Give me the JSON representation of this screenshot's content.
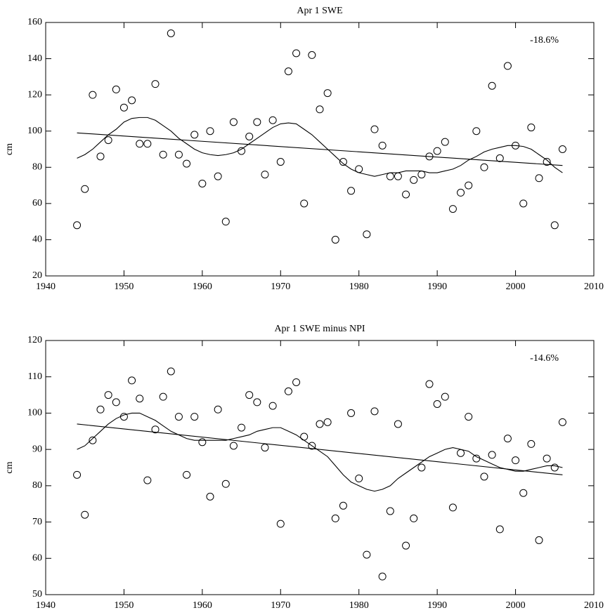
{
  "chart_data": [
    {
      "type": "scatter",
      "title": "Apr 1 SWE",
      "y_label": "cm",
      "annotation": "-18.6%",
      "color": "#000000",
      "xlim": [
        1940,
        2010
      ],
      "xticks": [
        1940,
        1950,
        1960,
        1970,
        1980,
        1990,
        2000,
        2010
      ],
      "ylim": [
        20,
        160
      ],
      "yticks": [
        20,
        40,
        60,
        80,
        100,
        120,
        140,
        160
      ],
      "x": [
        1944,
        1945,
        1946,
        1947,
        1948,
        1949,
        1950,
        1951,
        1952,
        1953,
        1954,
        1955,
        1956,
        1957,
        1958,
        1959,
        1960,
        1961,
        1962,
        1963,
        1964,
        1965,
        1966,
        1967,
        1968,
        1969,
        1970,
        1971,
        1972,
        1973,
        1974,
        1975,
        1976,
        1977,
        1978,
        1979,
        1980,
        1981,
        1982,
        1983,
        1984,
        1985,
        1986,
        1987,
        1988,
        1989,
        1990,
        1991,
        1992,
        1993,
        1994,
        1995,
        1996,
        1997,
        1998,
        1999,
        2000,
        2001,
        2002,
        2003,
        2004,
        2005,
        2006
      ],
      "values": [
        48,
        68,
        120,
        86,
        95,
        123,
        113,
        117,
        93,
        93,
        126,
        87,
        154,
        87,
        82,
        98,
        71,
        100,
        75,
        50,
        105,
        89,
        97,
        105,
        76,
        106,
        83,
        133,
        143,
        60,
        142,
        112,
        121,
        40,
        83,
        67,
        79,
        43,
        101,
        92,
        75,
        75,
        65,
        73,
        76,
        86,
        89,
        94,
        57,
        66,
        70,
        100,
        80,
        125,
        85,
        136,
        92,
        60,
        102,
        74,
        83,
        48,
        90
      ],
      "smooth": [
        85,
        87,
        90,
        94,
        98,
        101,
        105,
        107,
        107.5,
        107.5,
        106,
        103,
        100,
        96,
        93,
        90,
        88,
        87,
        86.5,
        87,
        88,
        90,
        93,
        96,
        99,
        102,
        104,
        104.5,
        104,
        101,
        98,
        94,
        90,
        86,
        82,
        79,
        77,
        76,
        75,
        76,
        77,
        77,
        78,
        78,
        78,
        77,
        77,
        78,
        79,
        81,
        84,
        86,
        88.5,
        90,
        91,
        92,
        92,
        91.5,
        90,
        87,
        84,
        80,
        77
      ],
      "trend_x": [
        1944,
        2006
      ],
      "trend_values": [
        99,
        81
      ]
    },
    {
      "type": "scatter",
      "title": "Apr 1 SWE minus NPI",
      "y_label": "cm",
      "annotation": "-14.6%",
      "color": "#000000",
      "xlim": [
        1940,
        2010
      ],
      "xticks": [
        1940,
        1950,
        1960,
        1970,
        1980,
        1990,
        2000,
        2010
      ],
      "ylim": [
        50,
        120
      ],
      "yticks": [
        50,
        60,
        70,
        80,
        90,
        100,
        110,
        120
      ],
      "x": [
        1944,
        1945,
        1946,
        1947,
        1948,
        1949,
        1950,
        1951,
        1952,
        1953,
        1954,
        1955,
        1956,
        1957,
        1958,
        1959,
        1960,
        1961,
        1962,
        1963,
        1964,
        1965,
        1966,
        1967,
        1968,
        1969,
        1970,
        1971,
        1972,
        1973,
        1974,
        1975,
        1976,
        1977,
        1978,
        1979,
        1980,
        1981,
        1982,
        1983,
        1984,
        1985,
        1986,
        1987,
        1988,
        1989,
        1990,
        1991,
        1992,
        1993,
        1994,
        1995,
        1996,
        1997,
        1998,
        1999,
        2000,
        2001,
        2002,
        2003,
        2004,
        2005,
        2006
      ],
      "values": [
        83,
        72,
        92.5,
        101,
        105,
        103,
        99,
        109,
        104,
        81.5,
        95.5,
        104.5,
        111.5,
        99,
        83,
        99,
        92,
        77,
        101,
        80.5,
        91,
        96,
        105,
        103,
        90.5,
        102,
        69.5,
        106,
        108.5,
        93.5,
        91,
        97,
        97.5,
        71,
        74.5,
        100,
        82,
        61,
        100.5,
        55,
        73,
        97,
        63.5,
        71,
        85,
        108,
        102.5,
        104.5,
        74,
        89,
        99,
        87.5,
        82.5,
        88.5,
        68,
        93,
        87,
        78,
        91.5,
        65,
        87.5,
        85,
        97.5
      ],
      "smooth": [
        90,
        91,
        93,
        95,
        97,
        98.5,
        99.5,
        100,
        100,
        99,
        98,
        96.5,
        95,
        94,
        93,
        92.5,
        92.5,
        92.5,
        92.5,
        92.5,
        93,
        93.5,
        94,
        95,
        95.5,
        96,
        96,
        95,
        94,
        92.5,
        91,
        89.5,
        88,
        85.5,
        83,
        81,
        80,
        79,
        78.5,
        79,
        80,
        82,
        83.5,
        85,
        86.5,
        88,
        89,
        90,
        90.5,
        90,
        89.5,
        88,
        87,
        86,
        85,
        84.5,
        84,
        84,
        84.5,
        85,
        85.5,
        85.5,
        85
      ],
      "trend_x": [
        1944,
        2006
      ],
      "trend_values": [
        97,
        83
      ]
    }
  ]
}
